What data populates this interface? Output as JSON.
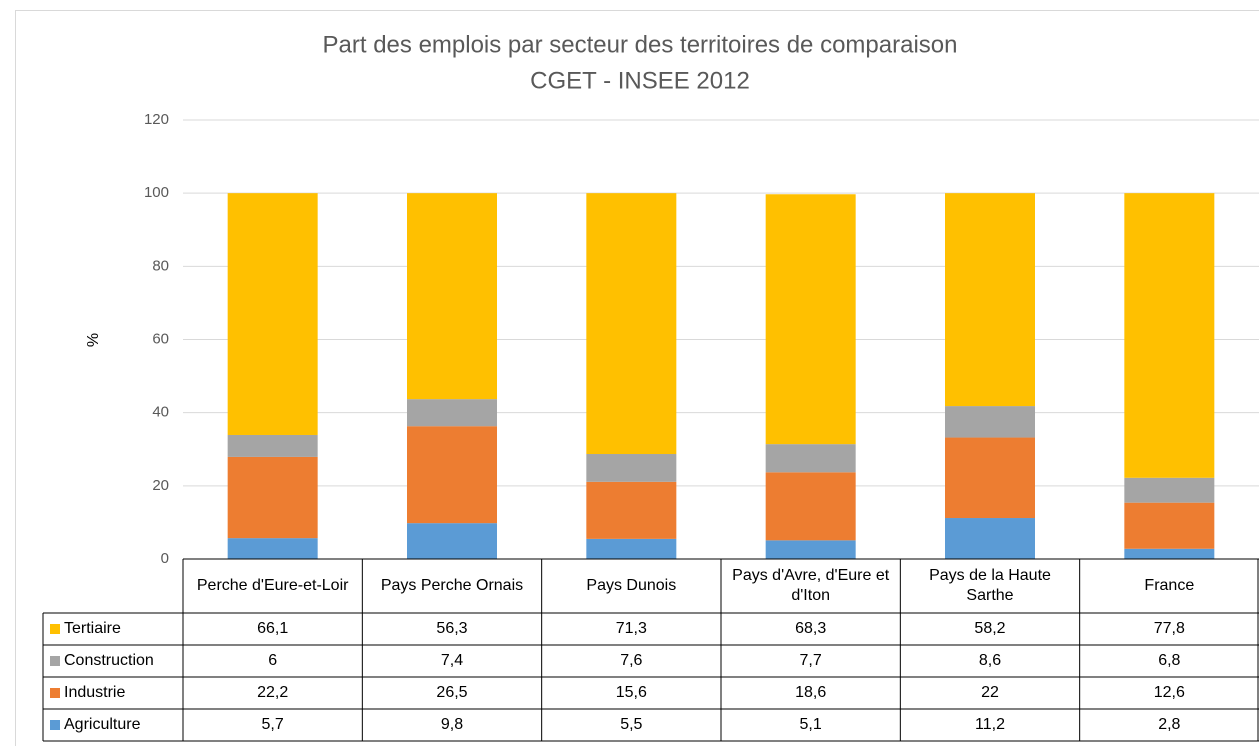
{
  "chart_data": {
    "type": "bar",
    "stacked": true,
    "title": "Part des emplois par secteur des territoires de comparaison",
    "subtitle": "CGET - INSEE  2012",
    "y_label": "%",
    "categories": [
      "Perche d'Eure-et-Loir",
      "Pays Perche Ornais",
      "Pays Dunois",
      "Pays d'Avre, d'Eure et d'Iton",
      "Pays de la Haute Sarthe",
      "France"
    ],
    "series": [
      {
        "name": "Agriculture",
        "color": "#5b9bd5",
        "values": [
          5.7,
          9.8,
          5.5,
          5.1,
          11.2,
          2.8
        ],
        "value_labels": [
          "5,7",
          "9,8",
          "5,5",
          "5,1",
          "11,2",
          "2,8"
        ]
      },
      {
        "name": "Industrie",
        "color": "#ed7d31",
        "values": [
          22.2,
          26.5,
          15.6,
          18.6,
          22,
          12.6
        ],
        "value_labels": [
          "22,2",
          "26,5",
          "15,6",
          "18,6",
          "22",
          "12,6"
        ]
      },
      {
        "name": "Construction",
        "color": "#a5a5a5",
        "values": [
          6,
          7.4,
          7.6,
          7.7,
          8.6,
          6.8
        ],
        "value_labels": [
          "6",
          "7,4",
          "7,6",
          "7,7",
          "8,6",
          "6,8"
        ]
      },
      {
        "name": "Tertiaire",
        "color": "#ffc000",
        "values": [
          66.1,
          56.3,
          71.3,
          68.3,
          58.2,
          77.8
        ],
        "value_labels": [
          "66,1",
          "56,3",
          "71,3",
          "68,3",
          "58,2",
          "77,8"
        ]
      }
    ],
    "ylim": [
      0,
      120
    ],
    "yticks": [
      0,
      20,
      40,
      60,
      80,
      100,
      120
    ],
    "grid": true,
    "data_table": true
  }
}
